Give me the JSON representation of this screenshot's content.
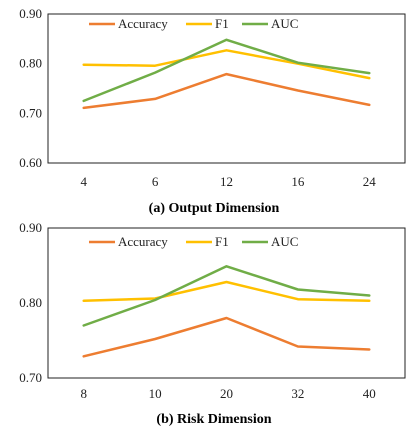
{
  "colors": {
    "Accuracy": "#ED7D31",
    "F1": "#FFC000",
    "AUC": "#70AD47"
  },
  "chart_data": [
    {
      "type": "line",
      "caption": "(a) Output Dimension",
      "categories": [
        "4",
        "6",
        "12",
        "16",
        "24"
      ],
      "ylim": [
        0.6,
        0.9
      ],
      "yticks": [
        "0.60",
        "0.70",
        "0.80",
        "0.90"
      ],
      "ytick_values": [
        0.6,
        0.7,
        0.8,
        0.9
      ],
      "legend_position": "top",
      "series": [
        {
          "name": "Accuracy",
          "values": [
            0.711,
            0.729,
            0.779,
            0.746,
            0.717
          ]
        },
        {
          "name": "F1",
          "values": [
            0.798,
            0.796,
            0.827,
            0.8,
            0.771
          ]
        },
        {
          "name": "AUC",
          "values": [
            0.725,
            0.782,
            0.848,
            0.802,
            0.781
          ]
        }
      ]
    },
    {
      "type": "line",
      "caption": "(b) Risk Dimension",
      "categories": [
        "8",
        "10",
        "20",
        "32",
        "40"
      ],
      "ylim": [
        0.7,
        0.9
      ],
      "yticks": [
        "0.70",
        "0.80",
        "0.90"
      ],
      "ytick_values": [
        0.7,
        0.8,
        0.9
      ],
      "legend_position": "top",
      "series": [
        {
          "name": "Accuracy",
          "values": [
            0.729,
            0.752,
            0.78,
            0.742,
            0.738
          ]
        },
        {
          "name": "F1",
          "values": [
            0.803,
            0.806,
            0.828,
            0.805,
            0.803
          ]
        },
        {
          "name": "AUC",
          "values": [
            0.77,
            0.804,
            0.849,
            0.818,
            0.81
          ]
        }
      ]
    }
  ]
}
